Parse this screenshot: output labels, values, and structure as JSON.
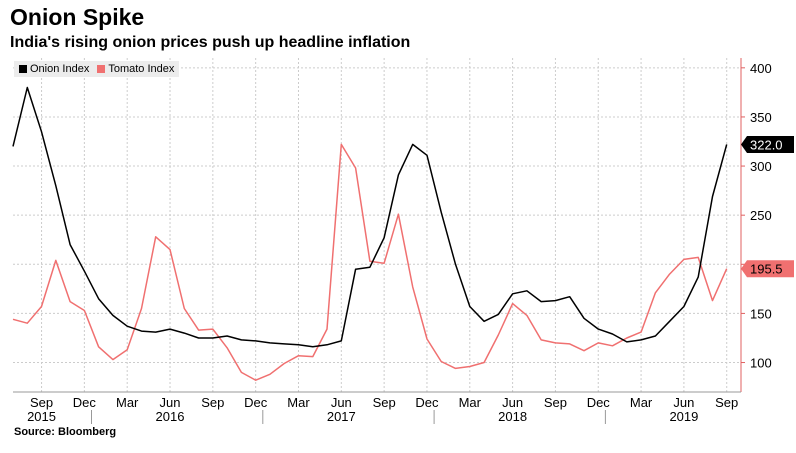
{
  "header": {
    "title": "Onion Spike",
    "subtitle": "India's rising onion prices push up headline inflation"
  },
  "source": "Source: Bloomberg",
  "colors": {
    "onion": "#000000",
    "tomato": "#f07070",
    "grid": "#cccccc",
    "axis": "#e06060"
  },
  "chart_data": {
    "type": "line",
    "title": "Onion Spike",
    "subtitle": "India's rising onion prices push up headline inflation",
    "xlabel": "",
    "ylabel": "",
    "ylim": [
      70,
      410
    ],
    "yticks": [
      100,
      150,
      200,
      250,
      300,
      350,
      400
    ],
    "x_months": [
      "2015-07",
      "2015-08",
      "2015-09",
      "2015-10",
      "2015-11",
      "2015-12",
      "2016-01",
      "2016-02",
      "2016-03",
      "2016-04",
      "2016-05",
      "2016-06",
      "2016-07",
      "2016-08",
      "2016-09",
      "2016-10",
      "2016-11",
      "2016-12",
      "2017-01",
      "2017-02",
      "2017-03",
      "2017-04",
      "2017-05",
      "2017-06",
      "2017-07",
      "2017-08",
      "2017-09",
      "2017-10",
      "2017-11",
      "2017-12",
      "2018-01",
      "2018-02",
      "2018-03",
      "2018-04",
      "2018-05",
      "2018-06",
      "2018-07",
      "2018-08",
      "2018-09",
      "2018-10",
      "2018-11",
      "2018-12",
      "2019-01",
      "2019-02",
      "2019-03",
      "2019-04",
      "2019-05",
      "2019-06",
      "2019-07",
      "2019-08",
      "2019-09",
      "2019-10"
    ],
    "x_tick_labels": [
      {
        "index": 2,
        "label": "Sep"
      },
      {
        "index": 5,
        "label": "Dec"
      },
      {
        "index": 8,
        "label": "Mar"
      },
      {
        "index": 11,
        "label": "Jun"
      },
      {
        "index": 14,
        "label": "Sep"
      },
      {
        "index": 17,
        "label": "Dec"
      },
      {
        "index": 20,
        "label": "Mar"
      },
      {
        "index": 23,
        "label": "Jun"
      },
      {
        "index": 26,
        "label": "Sep"
      },
      {
        "index": 29,
        "label": "Dec"
      },
      {
        "index": 32,
        "label": "Mar"
      },
      {
        "index": 35,
        "label": "Jun"
      },
      {
        "index": 38,
        "label": "Sep"
      },
      {
        "index": 41,
        "label": "Dec"
      },
      {
        "index": 44,
        "label": "Mar"
      },
      {
        "index": 47,
        "label": "Jun"
      },
      {
        "index": 50,
        "label": "Sep"
      }
    ],
    "year_labels": [
      {
        "index": 2,
        "label": "2015"
      },
      {
        "index": 11,
        "label": "2016"
      },
      {
        "index": 23,
        "label": "2017"
      },
      {
        "index": 35,
        "label": "2018"
      },
      {
        "index": 47,
        "label": "2019"
      }
    ],
    "year_dividers": [
      5.5,
      17.5,
      29.5,
      41.5
    ],
    "series": [
      {
        "name": "Onion Index",
        "color": "#000000",
        "last_label": "322.0",
        "values": [
          320,
          380,
          335,
          280,
          220,
          193,
          165,
          148,
          137,
          132,
          131,
          134,
          130,
          125,
          125,
          127,
          123,
          122,
          120,
          119,
          118,
          116,
          118,
          122,
          195,
          197,
          227,
          291,
          322,
          311,
          253,
          200,
          157,
          142,
          149,
          170,
          173,
          162,
          163,
          167,
          145,
          134,
          129,
          121,
          123,
          127,
          142,
          157,
          187,
          269,
          322
        ]
      },
      {
        "name": "Tomato Index",
        "color": "#f07070",
        "last_label": "195.5",
        "values": [
          144,
          140,
          157,
          204,
          162,
          153,
          116,
          103,
          113,
          155,
          228,
          215,
          155,
          133,
          134,
          115,
          90,
          82,
          88,
          99,
          107,
          106,
          134,
          322,
          298,
          203,
          201,
          251,
          177,
          124,
          101,
          94,
          96,
          100,
          128,
          160,
          148,
          123,
          120,
          119,
          112,
          120,
          117,
          125,
          131,
          171,
          190,
          205,
          207,
          163,
          195.5
        ]
      }
    ],
    "legend": [
      "Onion Index",
      "Tomato Index"
    ],
    "legend_position": "top-left",
    "y_axis_side": "right",
    "grid": true
  }
}
